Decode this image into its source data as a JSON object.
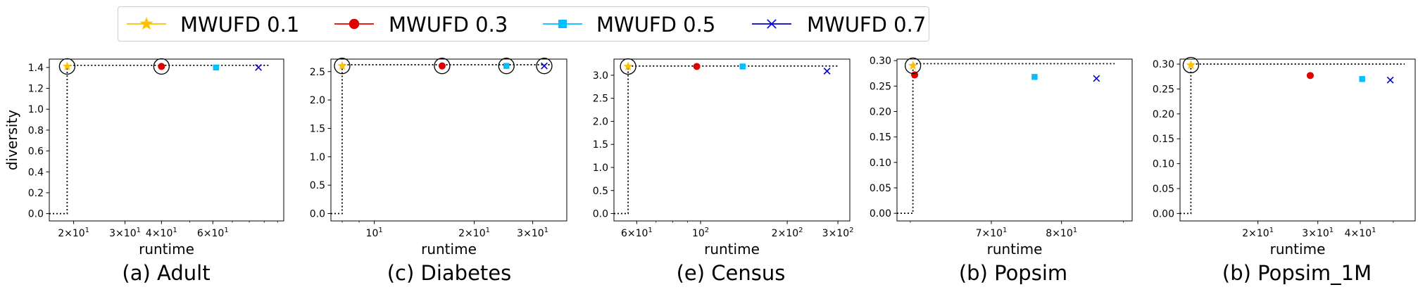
{
  "legend": {
    "entries": [
      {
        "label": "MWUFD 0.1",
        "color": "#FFC000",
        "marker": "star"
      },
      {
        "label": "MWUFD 0.3",
        "color": "#E00000",
        "marker": "circle"
      },
      {
        "label": "MWUFD 0.5",
        "color": "#00BFFF",
        "marker": "square"
      },
      {
        "label": "MWUFD 0.7",
        "color": "#0000CC",
        "marker": "x"
      }
    ]
  },
  "chart_data": [
    {
      "type": "scatter",
      "caption": "(a) Adult",
      "xlabel": "runtime",
      "ylabel": "diversity",
      "xscale": "log",
      "xlim": [
        16.5,
        105
      ],
      "ylim": [
        -0.07,
        1.48
      ],
      "xticks": [
        {
          "value": 20,
          "label": "2×10¹"
        },
        {
          "value": 30,
          "label": "3×10¹"
        },
        {
          "value": 40,
          "label": "4×10¹"
        },
        {
          "value": 60,
          "label": "6×10¹"
        }
      ],
      "yticks": [
        {
          "value": 0.0,
          "label": "0.0"
        },
        {
          "value": 0.2,
          "label": "0.2"
        },
        {
          "value": 0.4,
          "label": "0.4"
        },
        {
          "value": 0.6,
          "label": "0.6"
        },
        {
          "value": 0.8,
          "label": "0.8"
        },
        {
          "value": 1.0,
          "label": "1.0"
        },
        {
          "value": 1.2,
          "label": "1.2"
        },
        {
          "value": 1.4,
          "label": "1.4"
        }
      ],
      "series": [
        {
          "name": "MWUFD 0.1",
          "x": [
            19.0
          ],
          "y": [
            1.41
          ]
        },
        {
          "name": "MWUFD 0.3",
          "x": [
            40.0
          ],
          "y": [
            1.41
          ]
        },
        {
          "name": "MWUFD 0.5",
          "x": [
            61.5
          ],
          "y": [
            1.4
          ]
        },
        {
          "name": "MWUFD 0.7",
          "x": [
            86.0
          ],
          "y": [
            1.4
          ]
        }
      ],
      "pareto_frontier": [
        [
          19.0,
          1.41
        ],
        [
          40.0,
          1.41
        ]
      ],
      "frontier_line": {
        "x_start": 19.0,
        "x_end": 94.0,
        "y_top": 1.42
      },
      "corner": {
        "x_left": 16.5,
        "y_bottom": 0.0
      }
    },
    {
      "type": "scatter",
      "caption": "(c) Diabetes",
      "xlabel": "runtime",
      "ylabel": "",
      "xscale": "log",
      "xlim": [
        7.4,
        38
      ],
      "ylim": [
        -0.13,
        2.72
      ],
      "xticks": [
        {
          "value": 10,
          "label": "10¹"
        },
        {
          "value": 20,
          "label": "2×10¹"
        },
        {
          "value": 30,
          "label": "3×10¹"
        }
      ],
      "yticks": [
        {
          "value": 0.0,
          "label": "0.0"
        },
        {
          "value": 0.5,
          "label": "0.5"
        },
        {
          "value": 1.0,
          "label": "1.0"
        },
        {
          "value": 1.5,
          "label": "1.5"
        },
        {
          "value": 2.0,
          "label": "2.0"
        },
        {
          "value": 2.5,
          "label": "2.5"
        }
      ],
      "series": [
        {
          "name": "MWUFD 0.1",
          "x": [
            8.0
          ],
          "y": [
            2.6
          ]
        },
        {
          "name": "MWUFD 0.3",
          "x": [
            16.0
          ],
          "y": [
            2.6
          ]
        },
        {
          "name": "MWUFD 0.5",
          "x": [
            25.0
          ],
          "y": [
            2.6
          ]
        },
        {
          "name": "MWUFD 0.7",
          "x": [
            32.5
          ],
          "y": [
            2.6
          ]
        }
      ],
      "pareto_frontier": [
        [
          8.0,
          2.6
        ],
        [
          16.0,
          2.6
        ],
        [
          25.0,
          2.6
        ],
        [
          32.5,
          2.6
        ]
      ],
      "frontier_line": {
        "x_start": 8.0,
        "x_end": 34.0,
        "y_top": 2.62
      },
      "corner": {
        "x_left": 7.4,
        "y_bottom": 0.0
      }
    },
    {
      "type": "scatter",
      "caption": "(e) Census",
      "xlabel": "runtime",
      "ylabel": "",
      "xscale": "log",
      "xlim": [
        50,
        330
      ],
      "ylim": [
        -0.16,
        3.35
      ],
      "xticks": [
        {
          "value": 60,
          "label": "6×10¹"
        },
        {
          "value": 100,
          "label": "10²"
        },
        {
          "value": 200,
          "label": "2×10²"
        },
        {
          "value": 300,
          "label": "3×10²"
        }
      ],
      "yticks": [
        {
          "value": 0.0,
          "label": "0.0"
        },
        {
          "value": 0.5,
          "label": "0.5"
        },
        {
          "value": 1.0,
          "label": "1.0"
        },
        {
          "value": 1.5,
          "label": "1.5"
        },
        {
          "value": 2.0,
          "label": "2.0"
        },
        {
          "value": 2.5,
          "label": "2.5"
        },
        {
          "value": 3.0,
          "label": "3.0"
        }
      ],
      "series": [
        {
          "name": "MWUFD 0.1",
          "x": [
            56.0
          ],
          "y": [
            3.19
          ]
        },
        {
          "name": "MWUFD 0.3",
          "x": [
            97.0
          ],
          "y": [
            3.19
          ]
        },
        {
          "name": "MWUFD 0.5",
          "x": [
            140.0
          ],
          "y": [
            3.19
          ]
        },
        {
          "name": "MWUFD 0.7",
          "x": [
            275.0
          ],
          "y": [
            3.09
          ]
        }
      ],
      "pareto_frontier": [
        [
          56.0,
          3.19
        ]
      ],
      "frontier_line": {
        "x_start": 56.0,
        "x_end": 300.0,
        "y_top": 3.2
      },
      "corner": {
        "x_left": 50.0,
        "y_bottom": 0.0
      }
    },
    {
      "type": "scatter",
      "caption": "(b) Popsim",
      "xlabel": "runtime",
      "ylabel": "",
      "xscale": "log",
      "xlim": [
        58.5,
        91.5
      ],
      "ylim": [
        -0.015,
        0.303
      ],
      "xticks": [
        {
          "value": 70,
          "label": "7×10¹"
        },
        {
          "value": 80,
          "label": "8×10¹"
        }
      ],
      "yticks": [
        {
          "value": 0.0,
          "label": "0.00"
        },
        {
          "value": 0.05,
          "label": "0.05"
        },
        {
          "value": 0.1,
          "label": "0.10"
        },
        {
          "value": 0.15,
          "label": "0.15"
        },
        {
          "value": 0.2,
          "label": "0.20"
        },
        {
          "value": 0.25,
          "label": "0.25"
        },
        {
          "value": 0.3,
          "label": "0.30"
        }
      ],
      "series": [
        {
          "name": "MWUFD 0.1",
          "x": [
            60.3
          ],
          "y": [
            0.29
          ]
        },
        {
          "name": "MWUFD 0.3",
          "x": [
            60.5
          ],
          "y": [
            0.272
          ]
        },
        {
          "name": "MWUFD 0.5",
          "x": [
            76.0
          ],
          "y": [
            0.268
          ]
        },
        {
          "name": "MWUFD 0.7",
          "x": [
            85.5
          ],
          "y": [
            0.265
          ]
        }
      ],
      "pareto_frontier": [
        [
          60.3,
          0.29
        ]
      ],
      "frontier_line": {
        "x_start": 60.3,
        "x_end": 88.5,
        "y_top": 0.294
      },
      "corner": {
        "x_left": 58.5,
        "y_bottom": 0.0
      }
    },
    {
      "type": "scatter",
      "caption": "(b) Popsim_1M",
      "xlabel": "runtime",
      "ylabel": "",
      "xscale": "log",
      "xlim": [
        11.8,
        58
      ],
      "ylim": [
        -0.015,
        0.31
      ],
      "xticks": [
        {
          "value": 20,
          "label": "2×10¹"
        },
        {
          "value": 30,
          "label": "3×10¹"
        },
        {
          "value": 40,
          "label": "4×10¹"
        }
      ],
      "yticks": [
        {
          "value": 0.0,
          "label": "0.00"
        },
        {
          "value": 0.05,
          "label": "0.05"
        },
        {
          "value": 0.1,
          "label": "0.10"
        },
        {
          "value": 0.15,
          "label": "0.15"
        },
        {
          "value": 0.2,
          "label": "0.20"
        },
        {
          "value": 0.25,
          "label": "0.25"
        },
        {
          "value": 0.3,
          "label": "0.30"
        }
      ],
      "series": [
        {
          "name": "MWUFD 0.1",
          "x": [
            12.7
          ],
          "y": [
            0.298
          ]
        },
        {
          "name": "MWUFD 0.3",
          "x": [
            28.5
          ],
          "y": [
            0.277
          ]
        },
        {
          "name": "MWUFD 0.5",
          "x": [
            40.5
          ],
          "y": [
            0.27
          ]
        },
        {
          "name": "MWUFD 0.7",
          "x": [
            49.0
          ],
          "y": [
            0.268
          ]
        }
      ],
      "pareto_frontier": [
        [
          12.7,
          0.298
        ]
      ],
      "frontier_line": {
        "x_start": 12.7,
        "x_end": 54.0,
        "y_top": 0.3
      },
      "corner": {
        "x_left": 11.8,
        "y_bottom": 0.0
      }
    }
  ]
}
